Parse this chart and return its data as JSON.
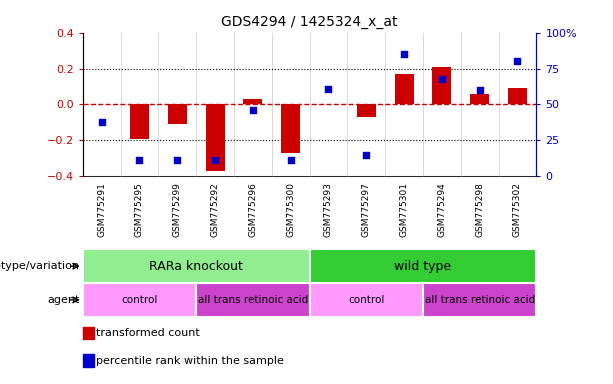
{
  "title": "GDS4294 / 1425324_x_at",
  "samples": [
    "GSM775291",
    "GSM775295",
    "GSM775299",
    "GSM775292",
    "GSM775296",
    "GSM775300",
    "GSM775293",
    "GSM775297",
    "GSM775301",
    "GSM775294",
    "GSM775298",
    "GSM775302"
  ],
  "bar_values": [
    0.0,
    -0.19,
    -0.11,
    -0.37,
    0.03,
    -0.27,
    0.0,
    -0.07,
    0.17,
    0.21,
    0.06,
    0.09
  ],
  "scatter_values": [
    38,
    11,
    11,
    11,
    46,
    11,
    61,
    15,
    85,
    68,
    60,
    80
  ],
  "ylim_left": [
    -0.4,
    0.4
  ],
  "ylim_right": [
    0,
    100
  ],
  "yticks_left": [
    -0.4,
    -0.2,
    0.0,
    0.2,
    0.4
  ],
  "yticks_right": [
    0,
    25,
    50,
    75,
    100
  ],
  "ytick_labels_right": [
    "0",
    "25",
    "50",
    "75",
    "100%"
  ],
  "bar_color": "#CC0000",
  "scatter_color": "#0000CC",
  "hline_color": "#CC0000",
  "dotted_line_color": "#000000",
  "genotype_groups": [
    {
      "label": "RARa knockout",
      "start": 0,
      "end": 5,
      "color": "#90EE90"
    },
    {
      "label": "wild type",
      "start": 6,
      "end": 11,
      "color": "#33CC33"
    }
  ],
  "agent_groups": [
    {
      "label": "control",
      "start": 0,
      "end": 2,
      "color": "#FF99FF"
    },
    {
      "label": "all trans retinoic acid",
      "start": 3,
      "end": 5,
      "color": "#CC44CC"
    },
    {
      "label": "control",
      "start": 6,
      "end": 8,
      "color": "#FF99FF"
    },
    {
      "label": "all trans retinoic acid",
      "start": 9,
      "end": 11,
      "color": "#CC44CC"
    }
  ],
  "row_labels": [
    "genotype/variation",
    "agent"
  ],
  "legend_items": [
    {
      "label": "transformed count",
      "color": "#CC0000"
    },
    {
      "label": "percentile rank within the sample",
      "color": "#0000CC"
    }
  ],
  "bar_width": 0.5
}
